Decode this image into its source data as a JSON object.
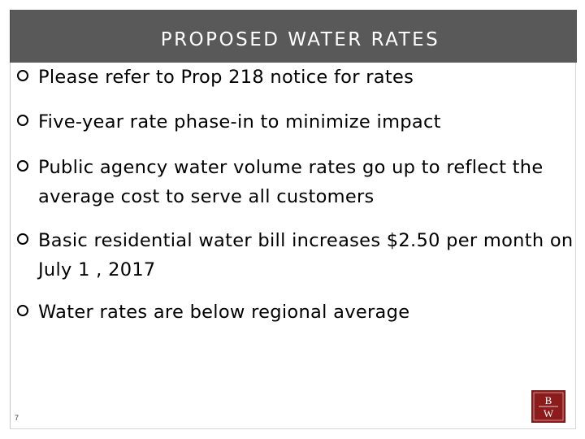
{
  "slide": {
    "title": "PROPOSED WATER RATES",
    "page_number": "7",
    "bullets": [
      {
        "text": "Please refer to Prop 218 notice for rates"
      },
      {
        "text": "Five-year rate phase-in to minimize impact"
      },
      {
        "text": "Public agency water volume rates go up to reflect the average cost to serve all customers"
      },
      {
        "text": "Basic residential water bill increases $2.50 per month on July 1 , 2017"
      },
      {
        "text": "Water rates are below regional average"
      }
    ],
    "logo": {
      "text_top": "B",
      "text_bottom": "W",
      "color": "#8c1c1c"
    }
  }
}
